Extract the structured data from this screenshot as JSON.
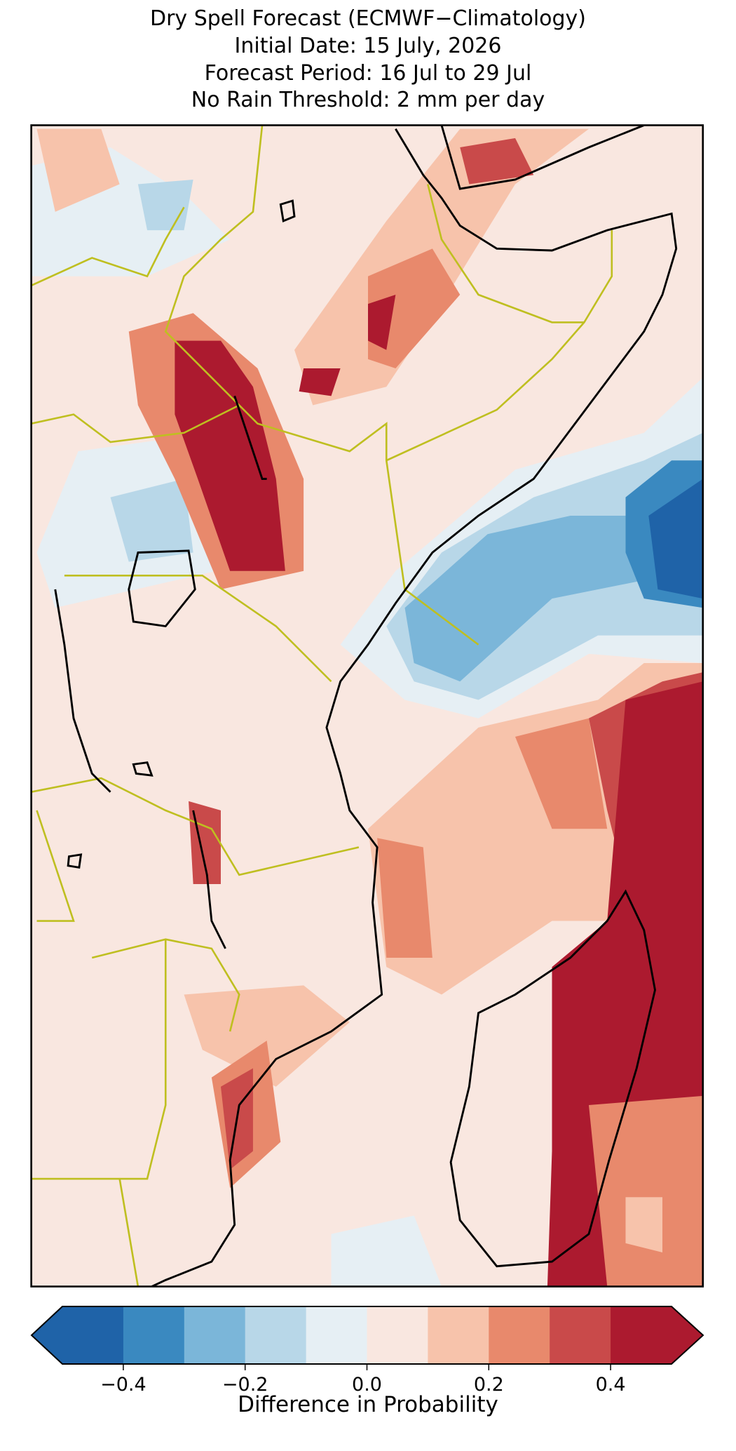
{
  "title_lines": [
    "Dry Spell Forecast (ECMWF−Climatology)",
    "Initial Date: 15 July, 2026",
    "Forecast Period: 16 Jul to 29 Jul",
    "No Rain Threshold: 2 mm per day"
  ],
  "colorbar": {
    "label": "Difference in Probability",
    "xlim": [
      -0.5,
      0.5
    ],
    "bins": [
      -0.5,
      -0.4,
      -0.3,
      -0.2,
      -0.1,
      0.0,
      0.1,
      0.2,
      0.3,
      0.4,
      0.5
    ],
    "colors": [
      "#1f63a8",
      "#3a89c0",
      "#7bb6d9",
      "#b8d7e8",
      "#e6eff4",
      "#f9e7e0",
      "#f7c3ab",
      "#e8896c",
      "#c94a4a",
      "#ac1a2f"
    ],
    "extend": "both",
    "ticks": [
      {
        "value": -0.4,
        "label": "−0.4"
      },
      {
        "value": -0.2,
        "label": "−0.2"
      },
      {
        "value": 0.0,
        "label": "0.0"
      },
      0.2,
      0.4
    ]
  }
}
